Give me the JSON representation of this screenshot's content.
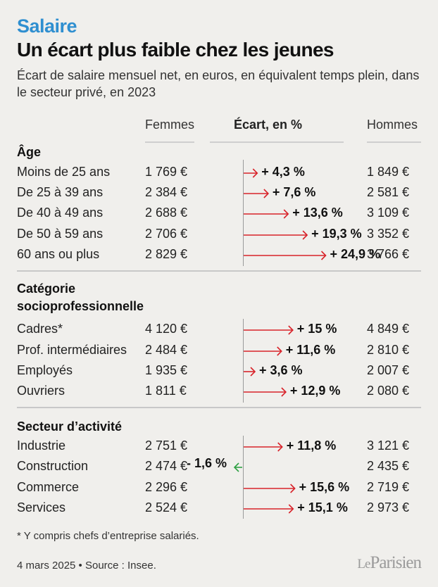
{
  "header": {
    "kicker": "Salaire",
    "title": "Un écart plus faible chez les jeunes",
    "subtitle": "Écart de salaire mensuel net, en euros, en équivalent temps plein, dans le secteur privé, en 2023"
  },
  "columns": {
    "femmes": "Femmes",
    "ecart": "Écart, en %",
    "hommes": "Hommes"
  },
  "colors": {
    "positive": "#d8232a",
    "negative": "#2ea043",
    "kicker": "#2f8fd0"
  },
  "chart_data": {
    "type": "bar",
    "unit": "%",
    "groups": [
      {
        "label": "Âge",
        "rows": [
          {
            "label": "Moins de 25 ans",
            "femmes": "1 769 €",
            "ecart": 4.3,
            "ecart_label": "+ 4,3 %",
            "hommes": "1 849 €"
          },
          {
            "label": "De 25 à 39 ans",
            "femmes": "2 384 €",
            "ecart": 7.6,
            "ecart_label": "+ 7,6 %",
            "hommes": "2 581 €"
          },
          {
            "label": "De 40 à 49 ans",
            "femmes": "2 688 €",
            "ecart": 13.6,
            "ecart_label": "+ 13,6 %",
            "hommes": "3 109 €"
          },
          {
            "label": "De 50 à 59 ans",
            "femmes": "2 706 €",
            "ecart": 19.3,
            "ecart_label": "+ 19,3 %",
            "hommes": "3 352 €"
          },
          {
            "label": "60 ans ou plus",
            "femmes": "2 829 €",
            "ecart": 24.9,
            "ecart_label": "+ 24,9 %",
            "hommes": "3 766 €"
          }
        ]
      },
      {
        "label": "Catégorie socioprofessionnelle",
        "rows": [
          {
            "label": "Cadres*",
            "femmes": "4 120 €",
            "ecart": 15,
            "ecart_label": "+ 15 %",
            "hommes": "4 849 €"
          },
          {
            "label": "Prof. intermédiaires",
            "femmes": "2 484 €",
            "ecart": 11.6,
            "ecart_label": "+ 11,6 %",
            "hommes": "2 810 €"
          },
          {
            "label": "Employés",
            "femmes": "1 935 €",
            "ecart": 3.6,
            "ecart_label": "+ 3,6 %",
            "hommes": "2 007 €"
          },
          {
            "label": "Ouvriers",
            "femmes": "1 811 €",
            "ecart": 12.9,
            "ecart_label": "+ 12,9 %",
            "hommes": "2 080 €"
          }
        ]
      },
      {
        "label": "Secteur d’activité",
        "rows": [
          {
            "label": "Industrie",
            "femmes": "2 751 €",
            "ecart": 11.8,
            "ecart_label": "+ 11,8 %",
            "hommes": "3 121 €"
          },
          {
            "label": "Construction",
            "femmes": "2 474 €",
            "ecart": -1.6,
            "ecart_label": "- 1,6 %",
            "hommes": "2 435 €"
          },
          {
            "label": "Commerce",
            "femmes": "2 296 €",
            "ecart": 15.6,
            "ecart_label": "+ 15,6 %",
            "hommes": "2 719 €"
          },
          {
            "label": "Services",
            "femmes": "2 524 €",
            "ecart": 15.1,
            "ecart_label": "+ 15,1 %",
            "hommes": "2 973 €"
          }
        ]
      }
    ]
  },
  "footer": {
    "note": "* Y compris chefs d’entreprise salariés.",
    "source": "4 mars 2025 • Source : Insee.",
    "logo_le": "Le",
    "logo_name": "Parisien"
  }
}
